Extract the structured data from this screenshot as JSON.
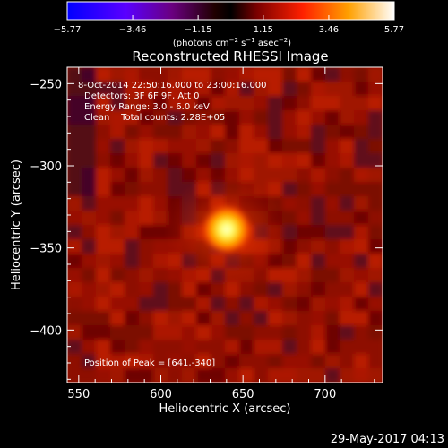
{
  "chart_data": {
    "type": "heatmap",
    "title": "Reconstructed RHESSI Image",
    "xlabel": "Heliocentric X (arcsec)",
    "ylabel": "Heliocentric Y (arcsec)",
    "xlim": [
      543,
      735
    ],
    "ylim": [
      -432,
      -240
    ],
    "x_ticks": [
      "550",
      "600",
      "650",
      "700"
    ],
    "y_ticks": [
      "-250",
      "-300",
      "-350",
      "-400"
    ],
    "grid": false,
    "colorbar": {
      "colormap": "blue-white-red-yellow",
      "range": [
        -5.77,
        5.77
      ],
      "tick_labels": [
        "-5.77",
        "-3.46",
        "-1.15",
        "1.15",
        "3.46",
        "5.77"
      ],
      "unit_label": "(photons cm-2 s-1 asec-2)"
    },
    "annotations": [
      "8-Oct-2014 22:50:16.000 to 23:00:16.000",
      "Detectors: 3F 6F 9F, Att 0",
      "Energy Range: 3.0 - 6.0 keV",
      "Clean    Total counts: 2.28E+05"
    ],
    "peak": {
      "x": 641,
      "y": -340,
      "label": "Position of Peak = [641,-340]"
    },
    "timestamp": "29-May-2017 04:13"
  },
  "colors": {
    "background": "#000000",
    "source_core": "#ffff9a",
    "source_halo": "#ff7000",
    "field_base": "#8a0c00"
  }
}
